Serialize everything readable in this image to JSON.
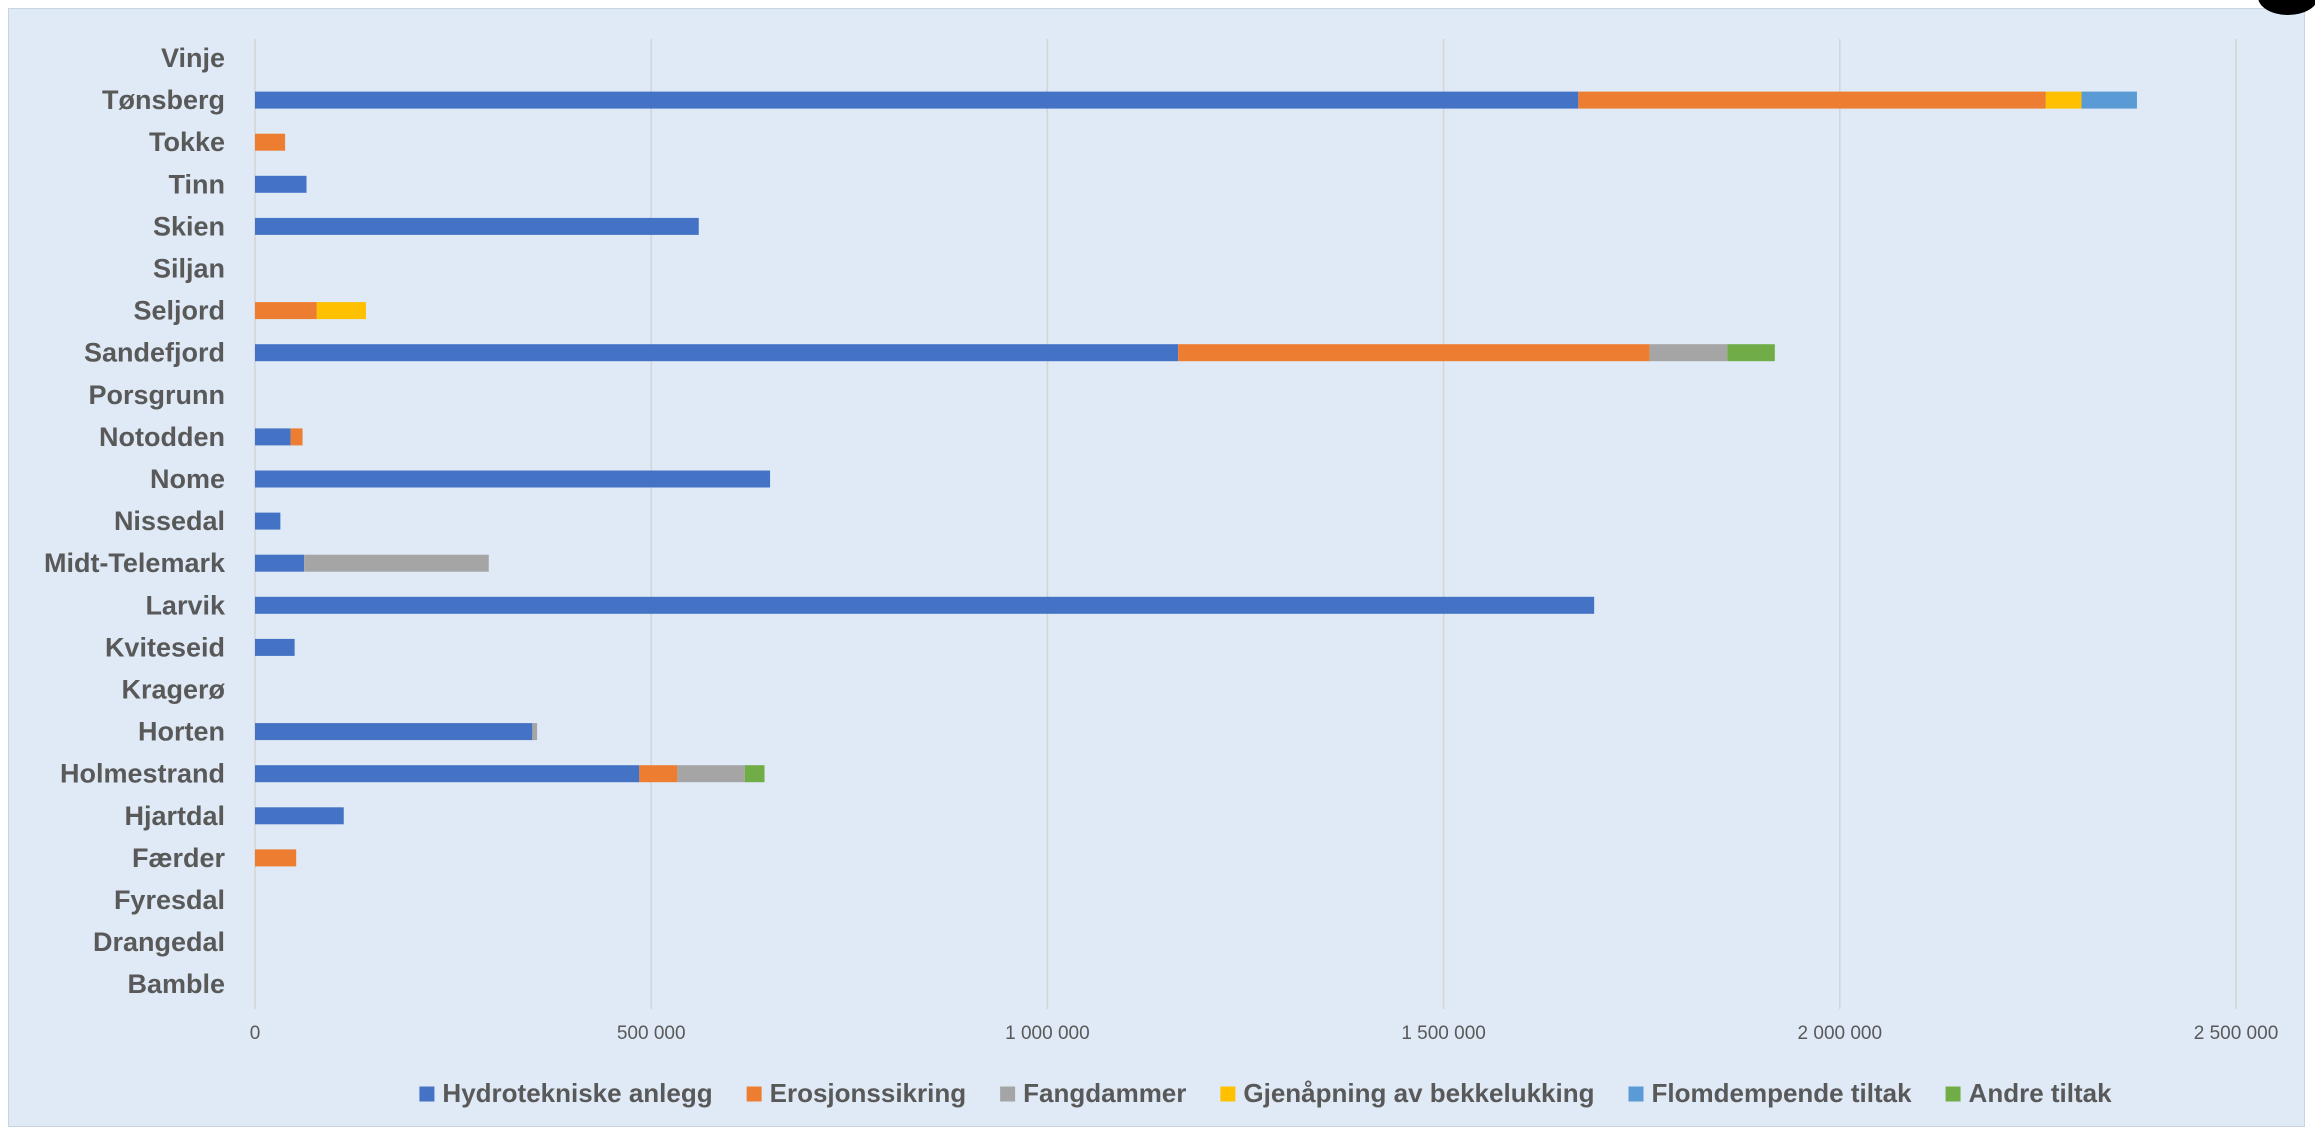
{
  "chart_data": {
    "type": "bar",
    "orientation": "horizontal",
    "stacked": true,
    "categories": [
      "Vinje",
      "Tønsberg",
      "Tokke",
      "Tinn",
      "Skien",
      "Siljan",
      "Seljord",
      "Sandefjord",
      "Porsgrunn",
      "Notodden",
      "Nome",
      "Nissedal",
      "Midt-Telemark",
      "Larvik",
      "Kviteseid",
      "Kragerø",
      "Horten",
      "Holmestrand",
      "Hjartdal",
      "Færder",
      "Fyresdal",
      "Drangedal",
      "Bamble"
    ],
    "series": [
      {
        "name": "Hydrotekniske anlegg",
        "color": "#4472c4",
        "values": [
          0,
          1670000,
          0,
          65000,
          560000,
          0,
          0,
          1165000,
          0,
          45000,
          650000,
          32000,
          62000,
          1690000,
          50000,
          0,
          350000,
          485000,
          112000,
          0,
          0,
          0,
          0
        ]
      },
      {
        "name": "Erosjonssikring",
        "color": "#ed7d31",
        "values": [
          0,
          590000,
          38000,
          0,
          0,
          0,
          78000,
          595000,
          0,
          15000,
          0,
          0,
          0,
          0,
          0,
          0,
          0,
          48000,
          0,
          52000,
          0,
          0,
          0
        ]
      },
      {
        "name": "Fangdammer",
        "color": "#a5a5a5",
        "values": [
          0,
          0,
          0,
          0,
          0,
          0,
          0,
          98000,
          0,
          0,
          0,
          0,
          233000,
          0,
          0,
          0,
          6000,
          85000,
          0,
          0,
          0,
          0,
          0
        ]
      },
      {
        "name": "Gjenåpning av bekkelukking",
        "color": "#ffc000",
        "values": [
          0,
          45000,
          0,
          0,
          0,
          0,
          62000,
          0,
          0,
          0,
          0,
          0,
          0,
          0,
          0,
          0,
          0,
          0,
          0,
          0,
          0,
          0,
          0
        ]
      },
      {
        "name": "Flomdempende tiltak",
        "color": "#5b9bd5",
        "values": [
          0,
          70000,
          0,
          0,
          0,
          0,
          0,
          0,
          0,
          0,
          0,
          0,
          0,
          0,
          0,
          0,
          0,
          0,
          0,
          0,
          0,
          0,
          0
        ]
      },
      {
        "name": "Andre tiltak",
        "color": "#70ad47",
        "values": [
          0,
          0,
          0,
          0,
          0,
          0,
          0,
          60000,
          0,
          0,
          0,
          0,
          0,
          0,
          0,
          0,
          0,
          25000,
          0,
          0,
          0,
          0,
          0
        ]
      }
    ],
    "x_ticks": [
      0,
      500000,
      1000000,
      1500000,
      2000000,
      2500000
    ],
    "x_tick_labels": [
      "0",
      "500 000",
      "1 000 000",
      "1 500 000",
      "2 000 000",
      "2 500 000"
    ],
    "xlim": [
      0,
      2500000
    ],
    "grid": "vertical",
    "legend_position": "bottom",
    "title": "",
    "xlabel": "",
    "ylabel": "",
    "colors": {
      "background": "#dfeaf6",
      "gridline": "#d4d4d4",
      "text": "#595959"
    }
  }
}
